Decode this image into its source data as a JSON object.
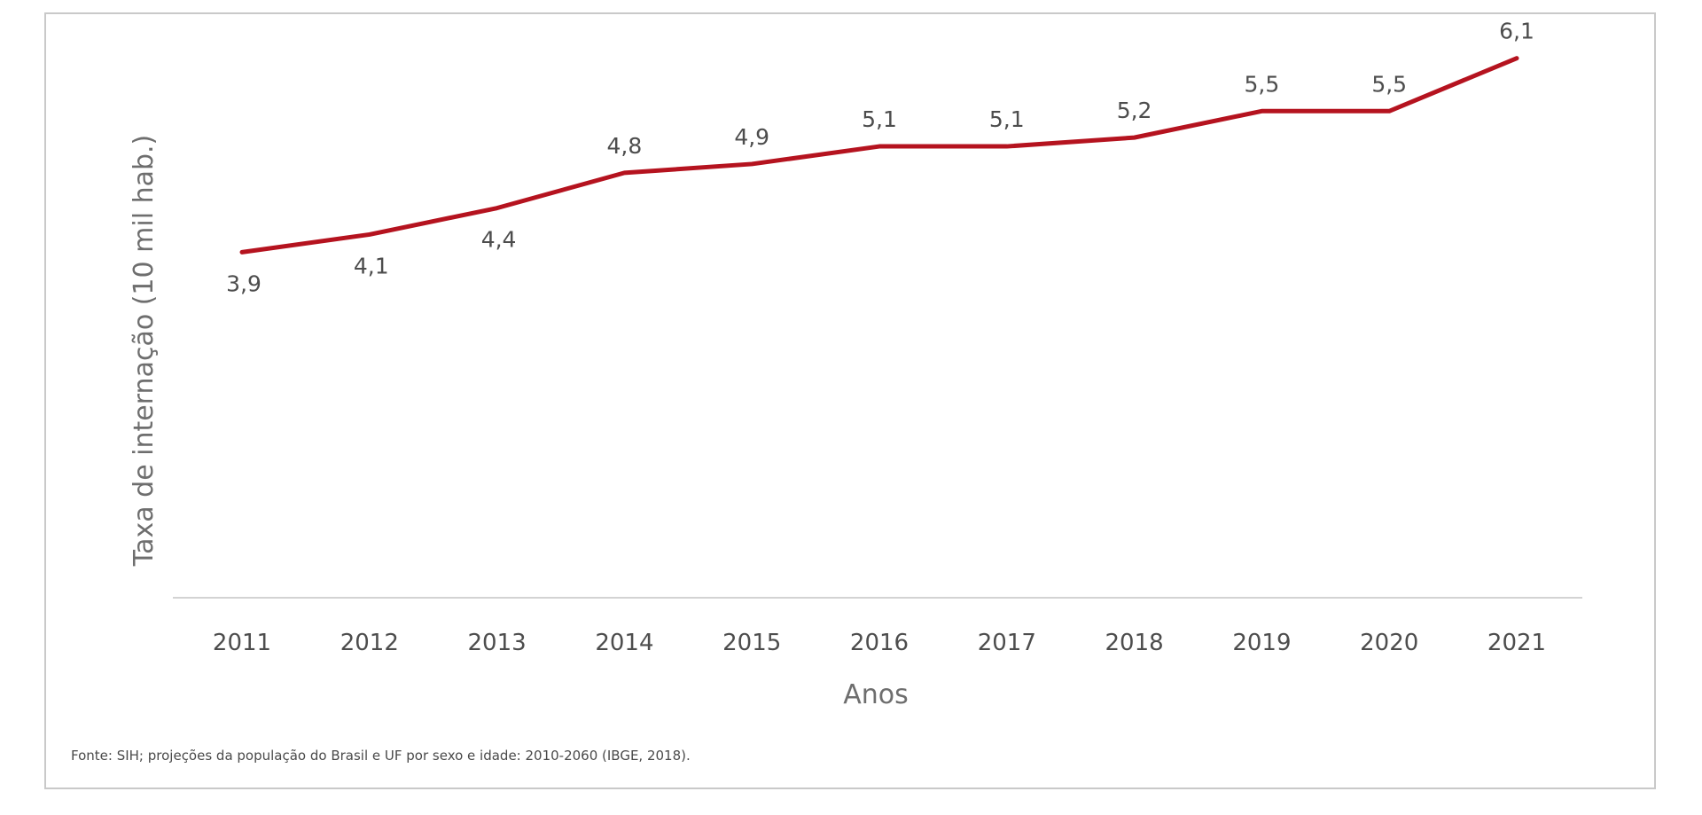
{
  "chart_data": {
    "type": "line",
    "title": "",
    "xlabel": "Anos",
    "ylabel": "Taxa de internação (10 mil hab.)",
    "categories": [
      "2011",
      "2012",
      "2013",
      "2014",
      "2015",
      "2016",
      "2017",
      "2018",
      "2019",
      "2020",
      "2021"
    ],
    "series": [
      {
        "values": [
          3.9,
          4.1,
          4.4,
          4.8,
          4.9,
          5.1,
          5.1,
          5.2,
          5.5,
          5.5,
          6.1
        ],
        "labels": [
          "3,9",
          "4,1",
          "4,4",
          "4,8",
          "4,9",
          "5,1",
          "5,1",
          "5,2",
          "5,5",
          "5,5",
          "6,1"
        ],
        "color": "#b5131f"
      }
    ],
    "ylim": [
      0,
      6.5
    ],
    "grid": false,
    "legend": "none",
    "source": "Fonte: SIH; projeções da população do Brasil e UF por sexo e idade: 2010-2060 (IBGE, 2018).",
    "baseline_color": "#d3d3d3"
  }
}
